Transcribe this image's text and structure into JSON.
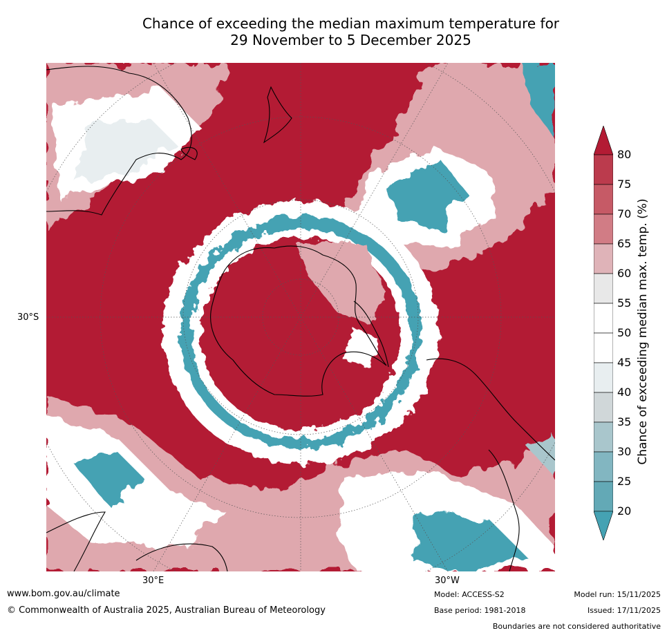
{
  "title": {
    "line1": "Chance of exceeding the median maximum temperature for",
    "line2": "29 November to 5 December 2025"
  },
  "map": {
    "lat_label_left": "30°S",
    "lon_label_30e": "30°E",
    "lon_label_30w": "30°W",
    "colors": {
      "hot_dark": "#b31b34",
      "hot_mid": "#c8646f",
      "hot_light": "#dfa8ae",
      "neutral": "#ffffff",
      "cool_light": "#a9c6cc",
      "cool_dark": "#45a2b3",
      "coast": "#000000"
    }
  },
  "colorbar": {
    "label": "Chance of exceeding median max. temp. (%)",
    "ticks": [
      "80",
      "75",
      "70",
      "65",
      "60",
      "55",
      "50",
      "45",
      "40",
      "35",
      "30",
      "25",
      "20"
    ],
    "bins": [
      {
        "color": "#b31b34"
      },
      {
        "color": "#bb3b4d"
      },
      {
        "color": "#c65a66"
      },
      {
        "color": "#d17c85"
      },
      {
        "color": "#dfb3b8"
      },
      {
        "color": "#e8e8e8"
      },
      {
        "color": "#ffffff"
      },
      {
        "color": "#ffffff"
      },
      {
        "color": "#e8eef0"
      },
      {
        "color": "#d0d7d9"
      },
      {
        "color": "#a9c6cc"
      },
      {
        "color": "#82b6c1"
      },
      {
        "color": "#63a9b6"
      },
      {
        "color": "#45a2b3"
      }
    ]
  },
  "footer": {
    "website": "www.bom.gov.au/climate",
    "copyright": "© Commonwealth of Australia 2025, Australian Bureau of Meteorology",
    "model": "Model: ACCESS-S2",
    "base_period": "Base period: 1981-2018",
    "model_run": "Model run: 15/11/2025",
    "issued": "Issued: 17/11/2025",
    "disclaimer": "Boundaries are not considered authoritative"
  }
}
